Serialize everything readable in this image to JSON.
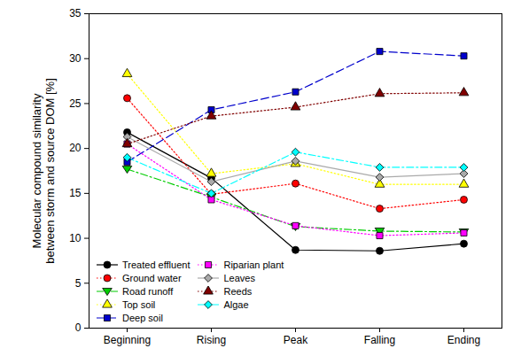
{
  "chart_data": {
    "type": "line",
    "y_label": "Molecular compound similarity\nbetween storm and source DOM [%]",
    "categories": [
      "Beginning",
      "Rising",
      "Peak",
      "Falling",
      "Ending"
    ],
    "ylim": [
      0,
      35
    ],
    "yticks": [
      0,
      5,
      10,
      15,
      20,
      25,
      30,
      35
    ],
    "legend": "lower left",
    "series": [
      {
        "name": "Treated effluent",
        "color": "#000000",
        "marker": "circle",
        "line_style": "solid",
        "values": [
          21.8,
          16.7,
          8.7,
          8.6,
          9.4
        ]
      },
      {
        "name": "Ground water",
        "color": "#ff0000",
        "marker": "circle",
        "line_style": "dotted",
        "values": [
          25.6,
          14.9,
          16.1,
          13.3,
          14.3
        ]
      },
      {
        "name": "Road runoff",
        "color": "#00cc00",
        "marker": "triangle-down",
        "line_style": "dashdot",
        "values": [
          17.7,
          14.6,
          11.3,
          10.8,
          10.7
        ]
      },
      {
        "name": "Top soil",
        "color": "#ffff00",
        "marker": "triangle",
        "line_style": "dotted",
        "values": [
          28.3,
          17.2,
          18.3,
          16.0,
          16.0
        ]
      },
      {
        "name": "Deep soil",
        "color": "#0000cc",
        "marker": "square",
        "line_style": "dashed",
        "values": [
          18.5,
          24.3,
          26.3,
          30.8,
          30.3
        ]
      },
      {
        "name": "Riparian plant",
        "color": "#ff00ff",
        "marker": "square",
        "line_style": "dotted",
        "values": [
          20.5,
          14.3,
          11.4,
          10.3,
          10.6
        ]
      },
      {
        "name": "Leaves",
        "color": "#aaaaaa",
        "marker": "diamond",
        "line_style": "solid",
        "values": [
          21.3,
          16.3,
          18.6,
          16.8,
          17.2
        ]
      },
      {
        "name": "Reeds",
        "color": "#800000",
        "marker": "triangle",
        "line_style": "dotted",
        "values": [
          20.5,
          23.6,
          24.6,
          26.1,
          26.2
        ]
      },
      {
        "name": "Algae",
        "color": "#00ffff",
        "marker": "diamond",
        "line_style": "dashdot",
        "values": [
          19.0,
          15.0,
          19.6,
          17.9,
          17.9
        ]
      }
    ]
  }
}
